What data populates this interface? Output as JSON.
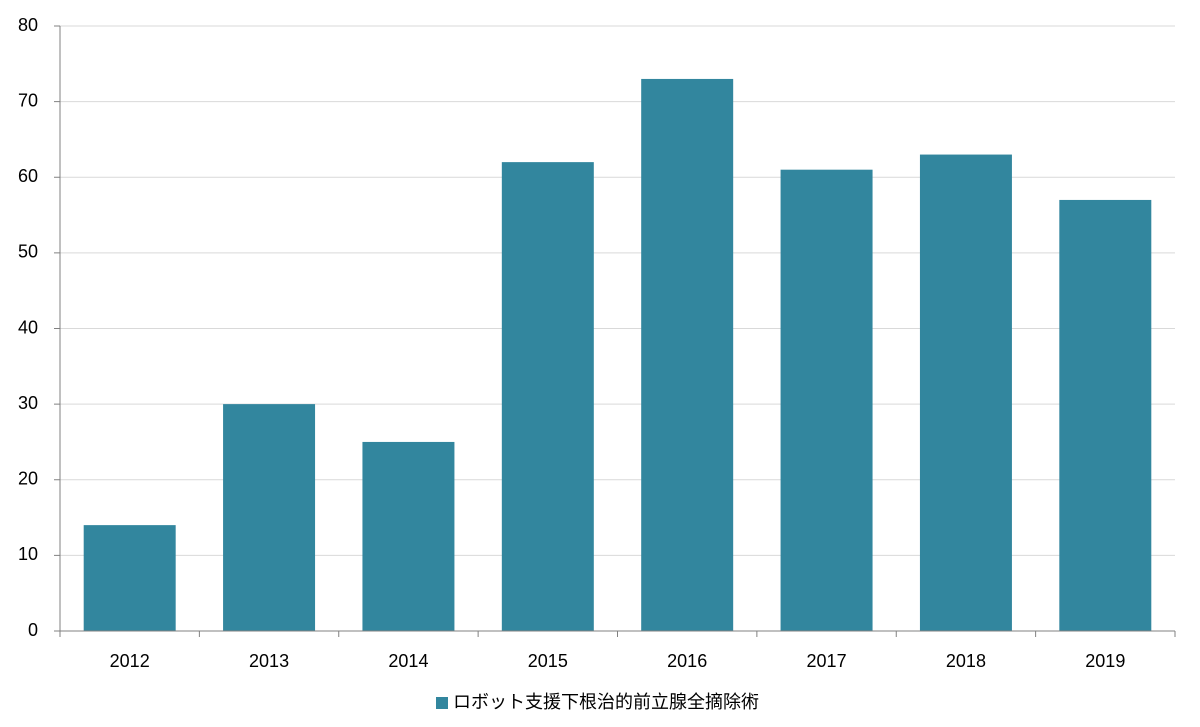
{
  "chart_data": {
    "type": "bar",
    "categories": [
      "2012",
      "2013",
      "2014",
      "2015",
      "2016",
      "2017",
      "2018",
      "2019"
    ],
    "series": [
      {
        "name": "ロボット支援下根治的前立腺全摘除術",
        "color": "#32869e",
        "values": [
          14,
          30,
          25,
          62,
          73,
          61,
          63,
          57
        ]
      }
    ],
    "ylim": [
      0,
      80
    ],
    "yticks": [
      0,
      10,
      20,
      30,
      40,
      50,
      60,
      70,
      80
    ],
    "grid": true,
    "legend": "bottom"
  }
}
